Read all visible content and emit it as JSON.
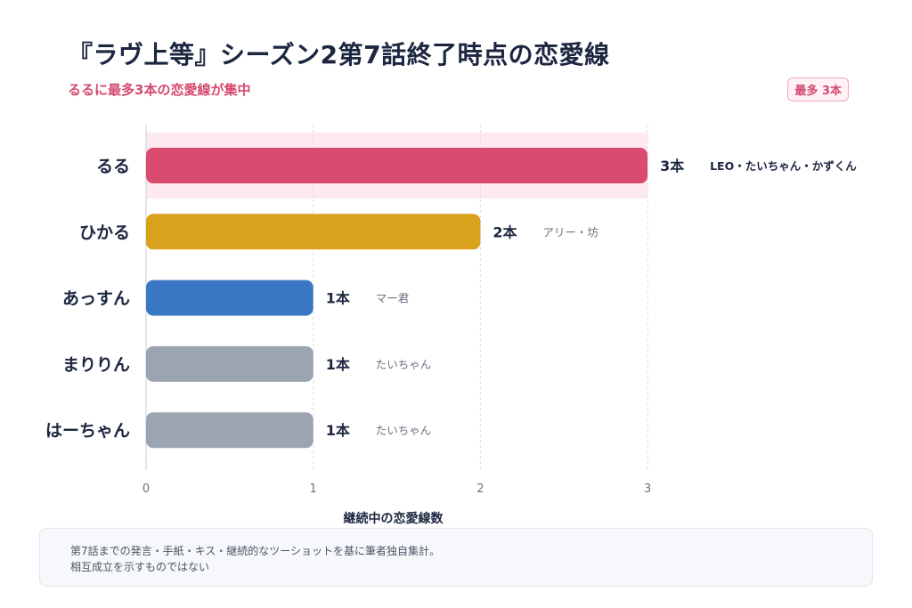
{
  "title": "『ラヴ上等』シーズン2第7話終了時点の恋愛線",
  "subtitle": "るるに最多3本の恋愛線が集中",
  "badge": "最多 3本",
  "chart_data": {
    "type": "bar",
    "orientation": "horizontal",
    "categories": [
      "るる",
      "ひかる",
      "あっすん",
      "まりりん",
      "はーちゃん"
    ],
    "values": [
      3,
      2,
      1,
      1,
      1
    ],
    "value_labels": [
      "3本",
      "2本",
      "1本",
      "1本",
      "1本"
    ],
    "annotations": [
      "LEO・たいちゃん・かずくん",
      "アリー・坊",
      "マー君",
      "たいちゃん",
      "たいちゃん"
    ],
    "bar_colors": [
      "#d94c70",
      "#d9a21c",
      "#3a78c3",
      "#9aa5b1",
      "#9aa5b1"
    ],
    "highlight_color": "#fde9ef",
    "highlight_index": 0,
    "xlabel": "継続中の恋愛線数",
    "xlim": [
      0,
      3
    ],
    "xticks": [
      "0",
      "1",
      "2",
      "3"
    ],
    "grid": true
  },
  "footnote": {
    "line1": "第7話までの発言・手紙・キス・継続的なツーショットを基に筆者独自集計。",
    "line2": "相互成立を示すものではない"
  }
}
